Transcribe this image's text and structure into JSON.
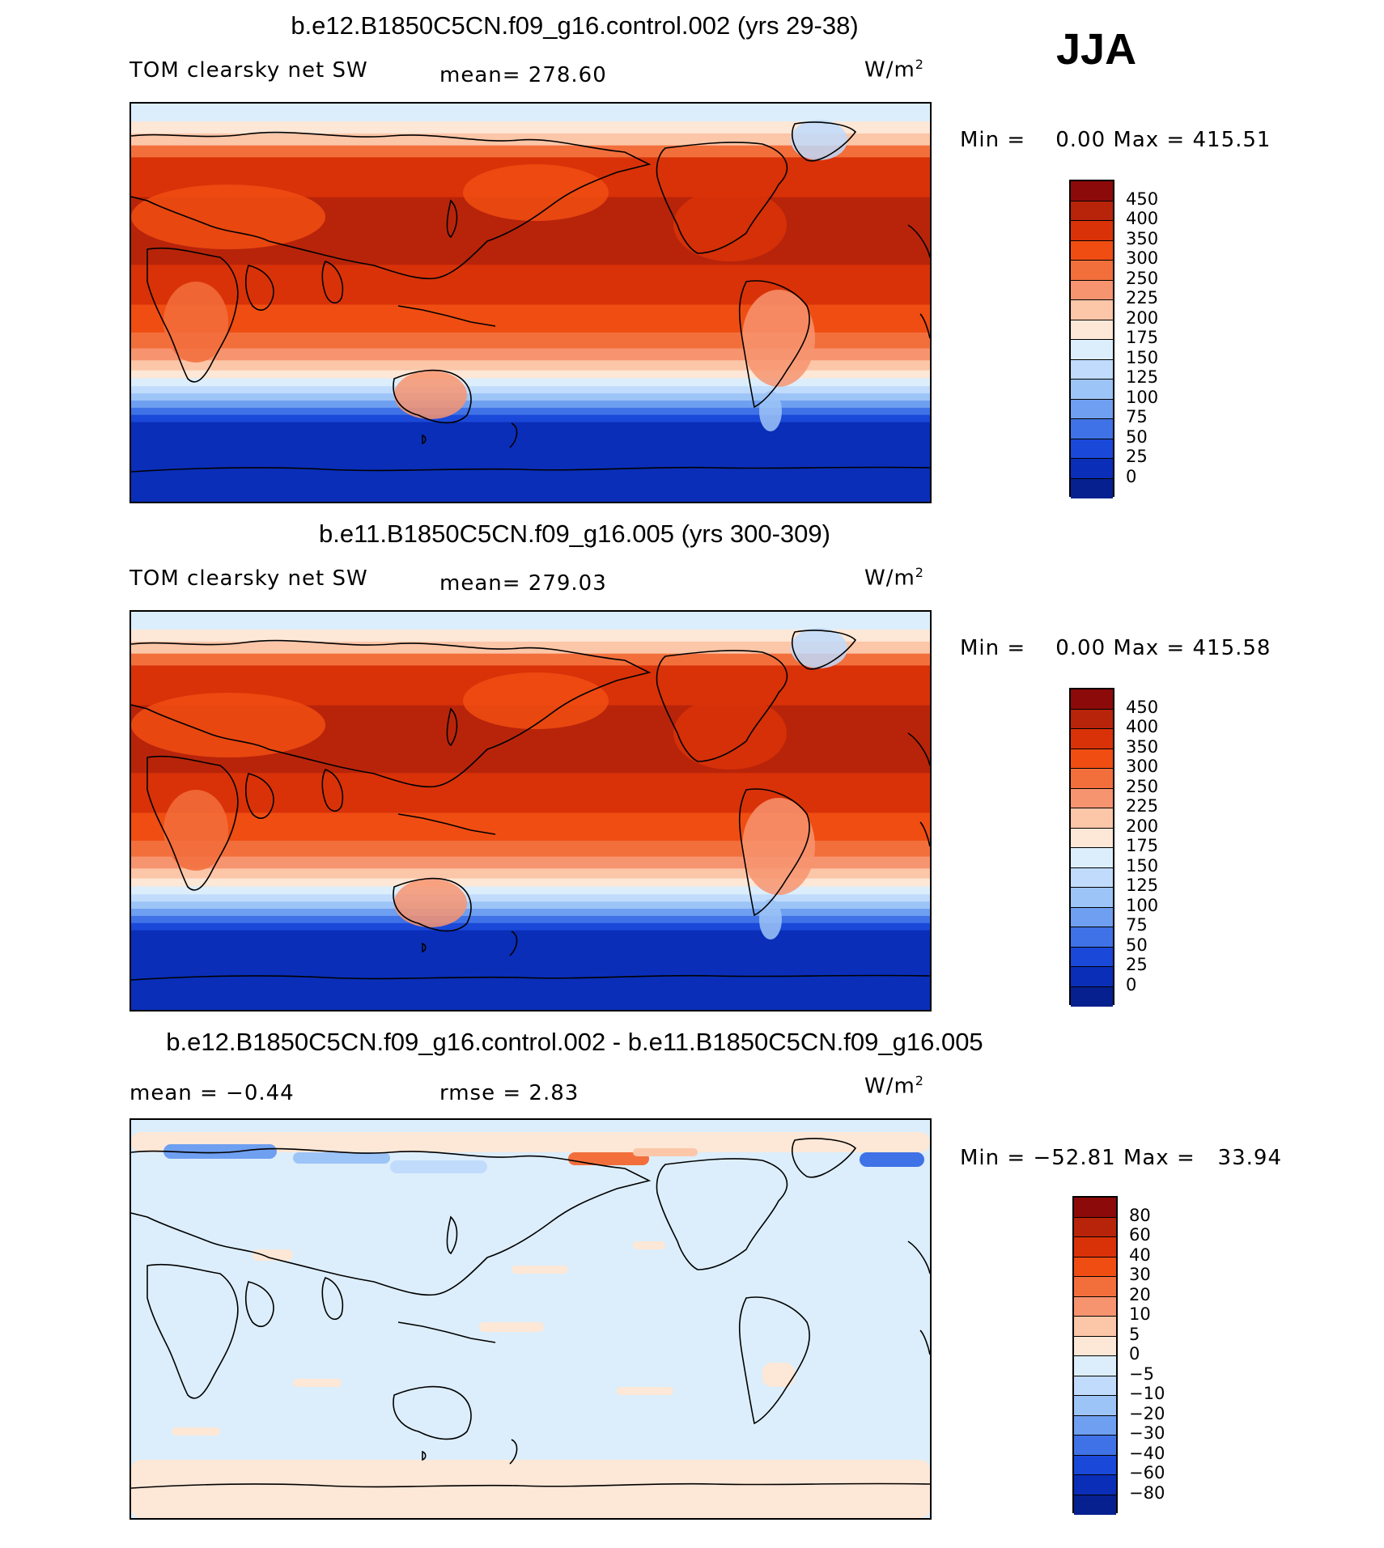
{
  "season": "JJA",
  "chart_data": [
    {
      "type": "heatmap",
      "title": "b.e12.B1850C5CN.f09_g16.control.002 (yrs 29-38)",
      "variable": "TOM clearsky net SW",
      "mean_text": "mean= 278.60",
      "units_base": "W/m",
      "units_exp": "2",
      "min_label": "Min =",
      "min_value": "0.00",
      "max_label": "Max =",
      "max_value": "415.51",
      "levels": [
        "450",
        "400",
        "350",
        "300",
        "250",
        "225",
        "200",
        "175",
        "150",
        "125",
        "100",
        "75",
        "50",
        "25",
        "0"
      ],
      "colors": [
        "#8c0a0a",
        "#b8240a",
        "#d93208",
        "#f04d12",
        "#f26f3c",
        "#f79470",
        "#fcc6a8",
        "#fde7d6",
        "#dceefb",
        "#c0dbfb",
        "#9dc4f7",
        "#6f9ff0",
        "#3f72e6",
        "#1a48d8",
        "#0a2eb8",
        "#06208f"
      ]
    },
    {
      "type": "heatmap",
      "title": "b.e11.B1850C5CN.f09_g16.005 (yrs 300-309)",
      "variable": "TOM clearsky net SW",
      "mean_text": "mean= 279.03",
      "units_base": "W/m",
      "units_exp": "2",
      "min_label": "Min =",
      "min_value": "0.00",
      "max_label": "Max =",
      "max_value": "415.58",
      "levels": [
        "450",
        "400",
        "350",
        "300",
        "250",
        "225",
        "200",
        "175",
        "150",
        "125",
        "100",
        "75",
        "50",
        "25",
        "0"
      ],
      "colors": [
        "#8c0a0a",
        "#b8240a",
        "#d93208",
        "#f04d12",
        "#f26f3c",
        "#f79470",
        "#fcc6a8",
        "#fde7d6",
        "#dceefb",
        "#c0dbfb",
        "#9dc4f7",
        "#6f9ff0",
        "#3f72e6",
        "#1a48d8",
        "#0a2eb8",
        "#06208f"
      ]
    },
    {
      "type": "heatmap",
      "title": "b.e12.B1850C5CN.f09_g16.control.002 - b.e11.B1850C5CN.f09_g16.005",
      "mean_text": "mean = −0.44",
      "rmse_text": "rmse = 2.83",
      "units_base": "W/m",
      "units_exp": "2",
      "min_label": "Min =",
      "min_value": "−52.81",
      "max_label": "Max =",
      "max_value": "33.94",
      "levels": [
        "80",
        "60",
        "40",
        "30",
        "20",
        "10",
        "5",
        "0",
        "−5",
        "−10",
        "−20",
        "−30",
        "−40",
        "−60",
        "−80"
      ],
      "colors": [
        "#8c0a0a",
        "#b8240a",
        "#d93208",
        "#f04d12",
        "#f26f3c",
        "#f79470",
        "#fcc6a8",
        "#fde7d6",
        "#dceefb",
        "#c0dbfb",
        "#9dc4f7",
        "#6f9ff0",
        "#3f72e6",
        "#1a48d8",
        "#0a2eb8",
        "#06208f"
      ]
    }
  ]
}
